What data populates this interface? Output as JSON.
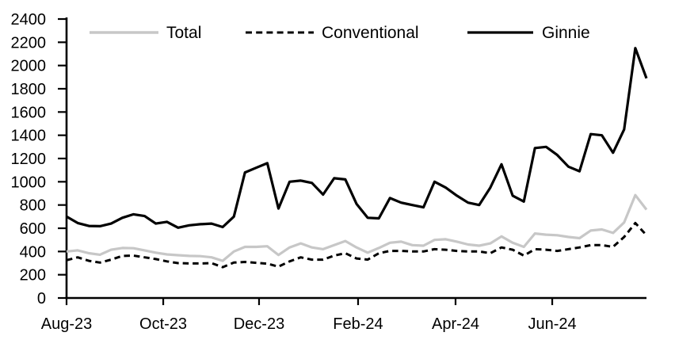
{
  "chart_data": {
    "type": "line",
    "title": "",
    "xlabel": "",
    "ylabel": "",
    "grid": false,
    "legend_position": "top",
    "x_axis": {
      "tick_labels": [
        "Aug-23",
        "Oct-23",
        "Dec-23",
        "Feb-24",
        "Apr-24",
        "Jun-24"
      ],
      "tick_positions_weeks": [
        0,
        8.67,
        17.26,
        26.14,
        34.88,
        43.55
      ],
      "range_weeks": [
        0,
        52
      ]
    },
    "y_axis": {
      "tick_labels": [
        "0",
        "200",
        "400",
        "600",
        "800",
        "1000",
        "1200",
        "1400",
        "1600",
        "1800",
        "2000",
        "2200",
        "2400"
      ],
      "tick_values": [
        0,
        200,
        400,
        600,
        800,
        1000,
        1200,
        1400,
        1600,
        1800,
        2000,
        2200,
        2400
      ],
      "range": [
        0,
        2400
      ]
    },
    "series": [
      {
        "name": "Total",
        "color": "#c7c7c7",
        "line_style": "solid",
        "values": [
          400,
          410,
          385,
          372,
          415,
          430,
          428,
          410,
          390,
          375,
          368,
          362,
          360,
          350,
          320,
          400,
          440,
          440,
          445,
          370,
          435,
          470,
          435,
          420,
          455,
          490,
          435,
          390,
          430,
          475,
          485,
          455,
          450,
          500,
          505,
          485,
          460,
          450,
          470,
          530,
          475,
          440,
          555,
          545,
          540,
          525,
          515,
          580,
          590,
          560,
          650,
          885,
          760
        ]
      },
      {
        "name": "Conventional",
        "color": "#000000",
        "line_style": "dashed",
        "values": [
          325,
          350,
          320,
          305,
          330,
          362,
          365,
          350,
          335,
          315,
          300,
          297,
          297,
          300,
          265,
          305,
          310,
          303,
          295,
          270,
          315,
          350,
          330,
          330,
          365,
          385,
          340,
          330,
          385,
          405,
          405,
          400,
          400,
          420,
          415,
          405,
          400,
          400,
          385,
          435,
          415,
          365,
          420,
          415,
          405,
          420,
          435,
          455,
          455,
          440,
          525,
          645,
          540
        ]
      },
      {
        "name": "Ginnie",
        "color": "#000000",
        "line_style": "solid",
        "values": [
          700,
          645,
          620,
          618,
          640,
          690,
          720,
          705,
          640,
          655,
          605,
          625,
          635,
          640,
          610,
          700,
          1080,
          1120,
          1160,
          770,
          1000,
          1010,
          990,
          890,
          1030,
          1020,
          810,
          690,
          685,
          860,
          820,
          800,
          780,
          1000,
          950,
          880,
          820,
          800,
          950,
          1150,
          880,
          830,
          1290,
          1300,
          1230,
          1130,
          1090,
          1410,
          1400,
          1250,
          1450,
          2150,
          1890
        ]
      }
    ]
  }
}
